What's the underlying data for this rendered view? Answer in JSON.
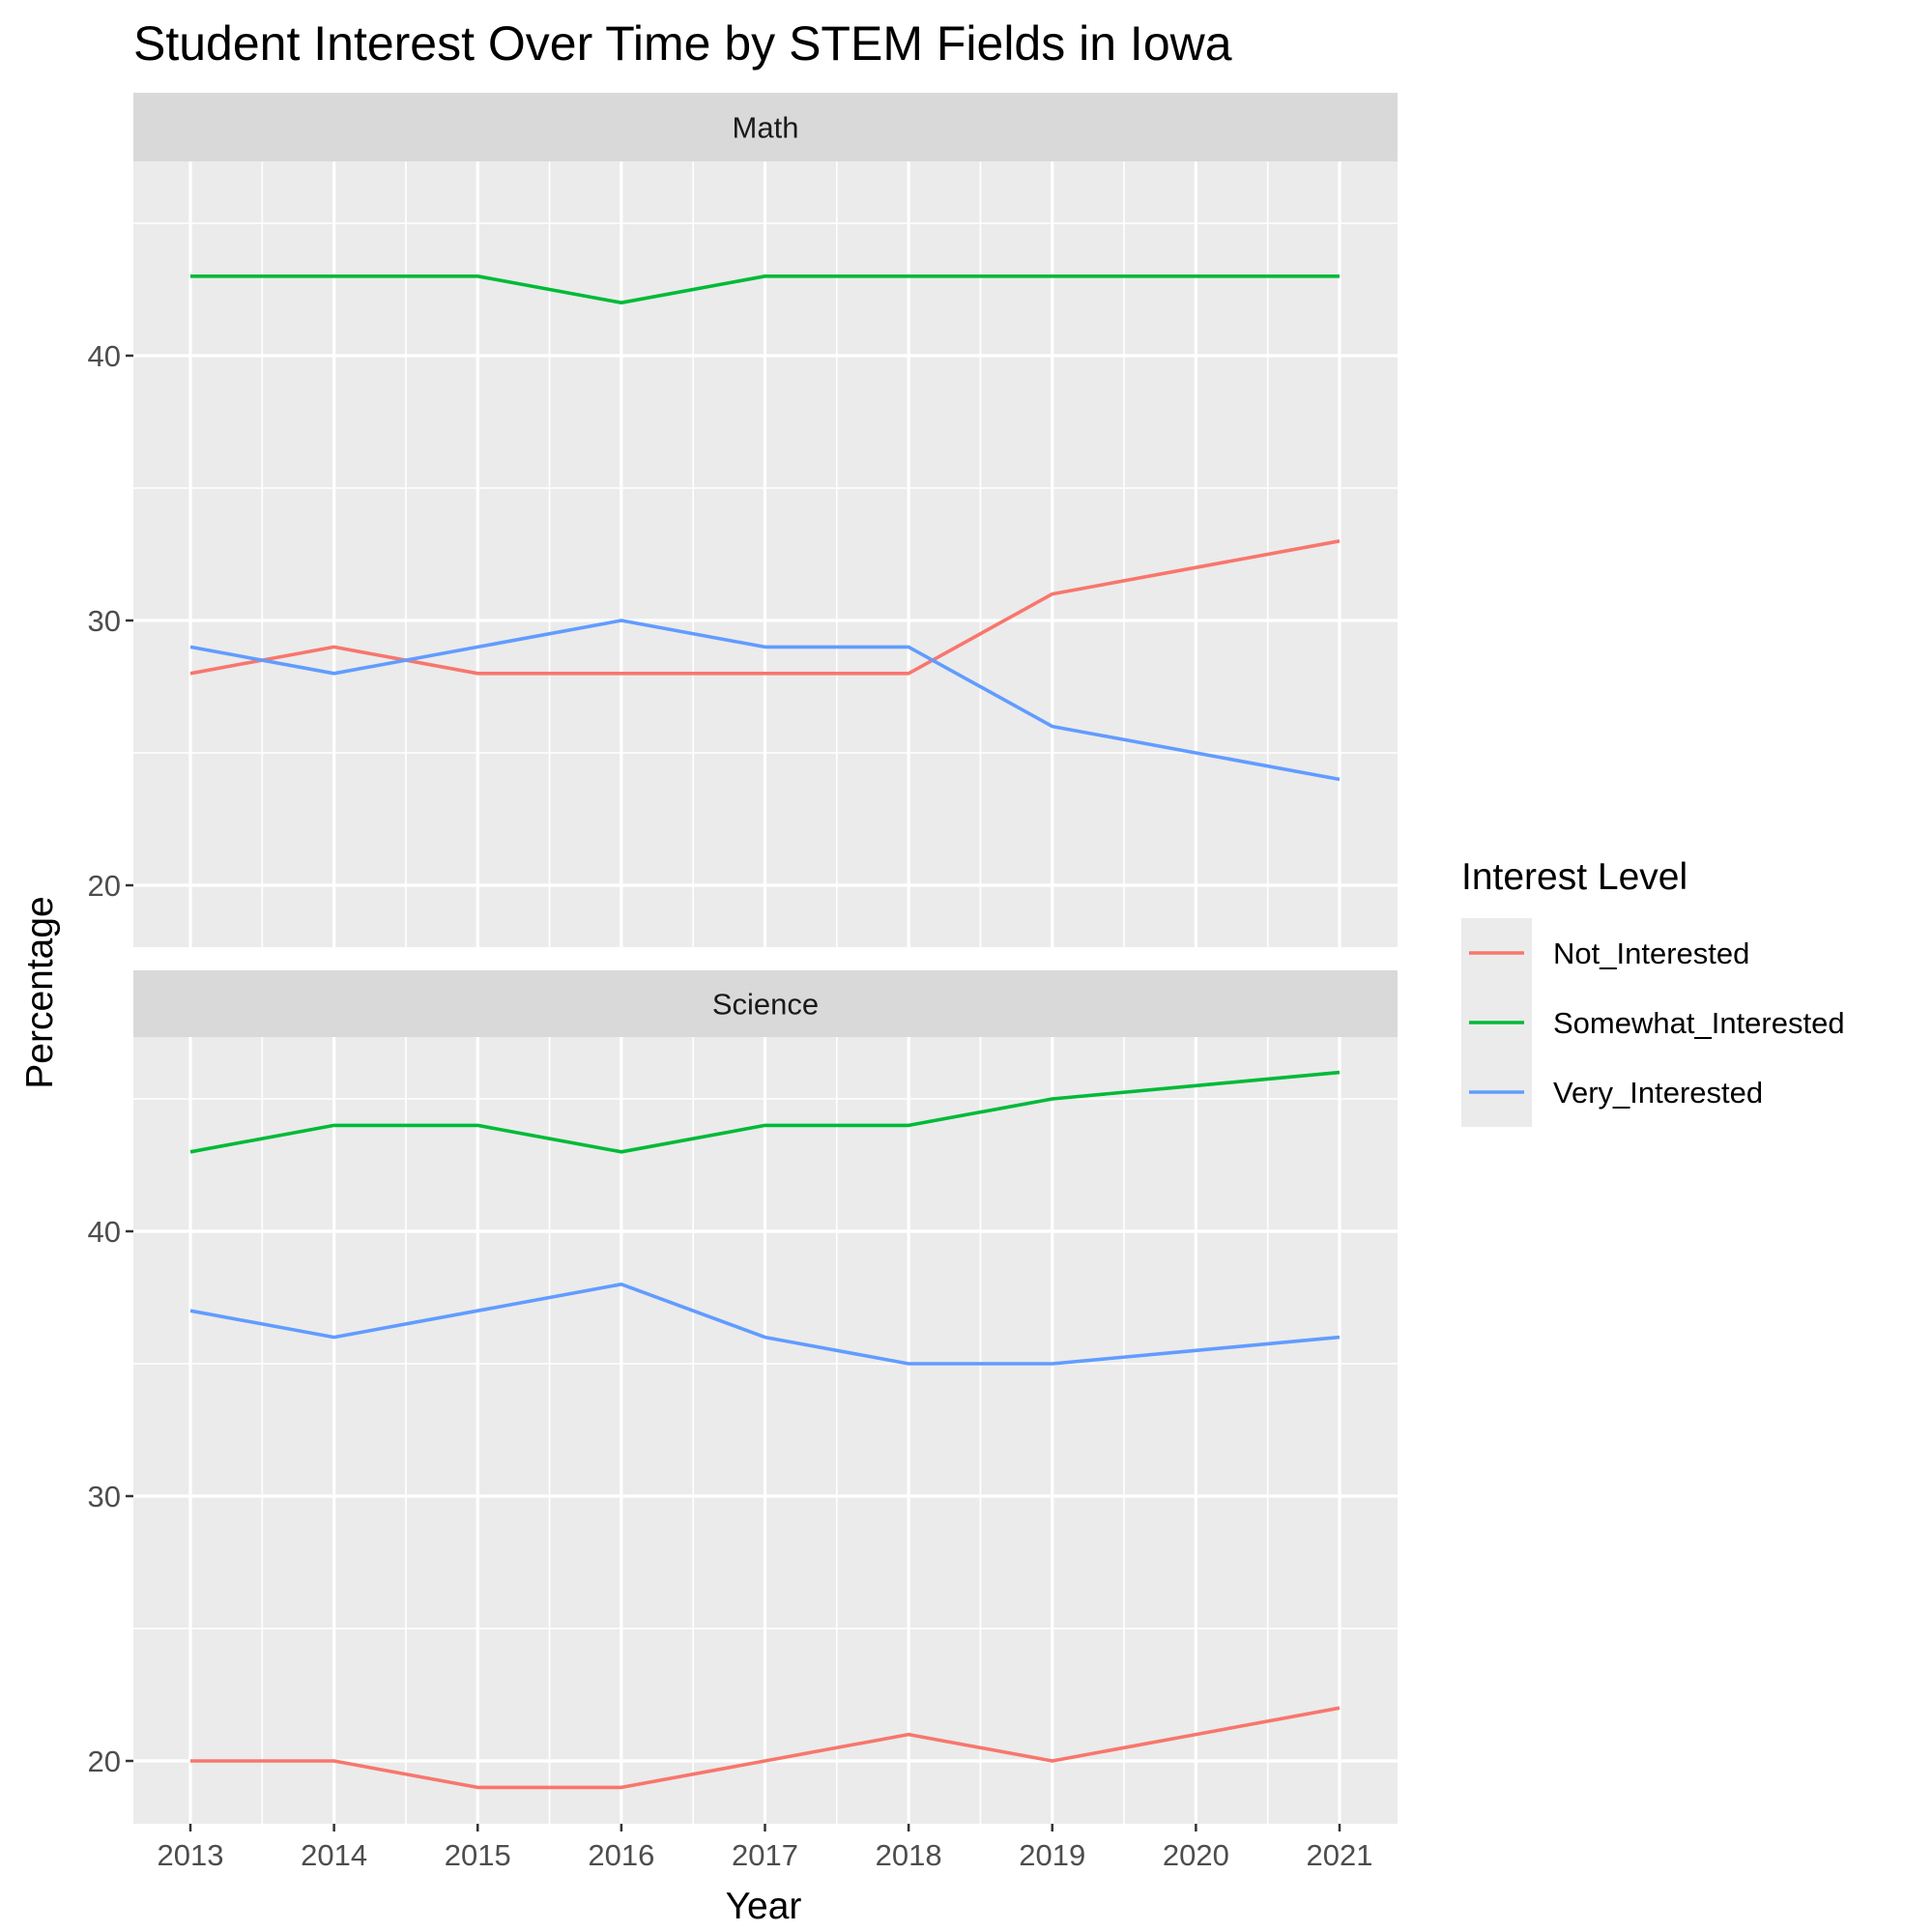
{
  "chart_data": {
    "type": "line",
    "title": "Student Interest Over Time by STEM Fields in Iowa",
    "xlabel": "Year",
    "ylabel": "Percentage",
    "x": [
      2013,
      2014,
      2015,
      2016,
      2017,
      2018,
      2019,
      2020,
      2021
    ],
    "x_ticks": [
      "2013",
      "2014",
      "2015",
      "2016",
      "2017",
      "2018",
      "2019",
      "2020",
      "2021"
    ],
    "y_ticks": [
      20,
      30,
      40
    ],
    "ylim": [
      18,
      47
    ],
    "grid": true,
    "legend": {
      "title": "Interest Level",
      "position": "right",
      "entries": [
        "Not_Interested",
        "Somewhat_Interested",
        "Very_Interested"
      ]
    },
    "colors": {
      "Not_Interested": "#f8766d",
      "Somewhat_Interested": "#00ba38",
      "Very_Interested": "#619cff"
    },
    "facets": [
      {
        "label": "Math",
        "series": [
          {
            "name": "Not_Interested",
            "values": [
              28,
              29,
              28,
              28,
              28,
              28,
              31,
              32,
              33
            ]
          },
          {
            "name": "Somewhat_Interested",
            "values": [
              43,
              43,
              43,
              42,
              43,
              43,
              43,
              43,
              43
            ]
          },
          {
            "name": "Very_Interested",
            "values": [
              29,
              28,
              29,
              30,
              29,
              29,
              26,
              25,
              24
            ]
          }
        ]
      },
      {
        "label": "Science",
        "series": [
          {
            "name": "Not_Interested",
            "values": [
              20,
              20,
              19,
              19,
              20,
              21,
              20,
              21,
              22
            ]
          },
          {
            "name": "Somewhat_Interested",
            "values": [
              43,
              44,
              44,
              43,
              44,
              44,
              45,
              45.5,
              46
            ]
          },
          {
            "name": "Very_Interested",
            "values": [
              37,
              36,
              37,
              38,
              36,
              35,
              35,
              35.5,
              36
            ]
          }
        ]
      }
    ]
  }
}
